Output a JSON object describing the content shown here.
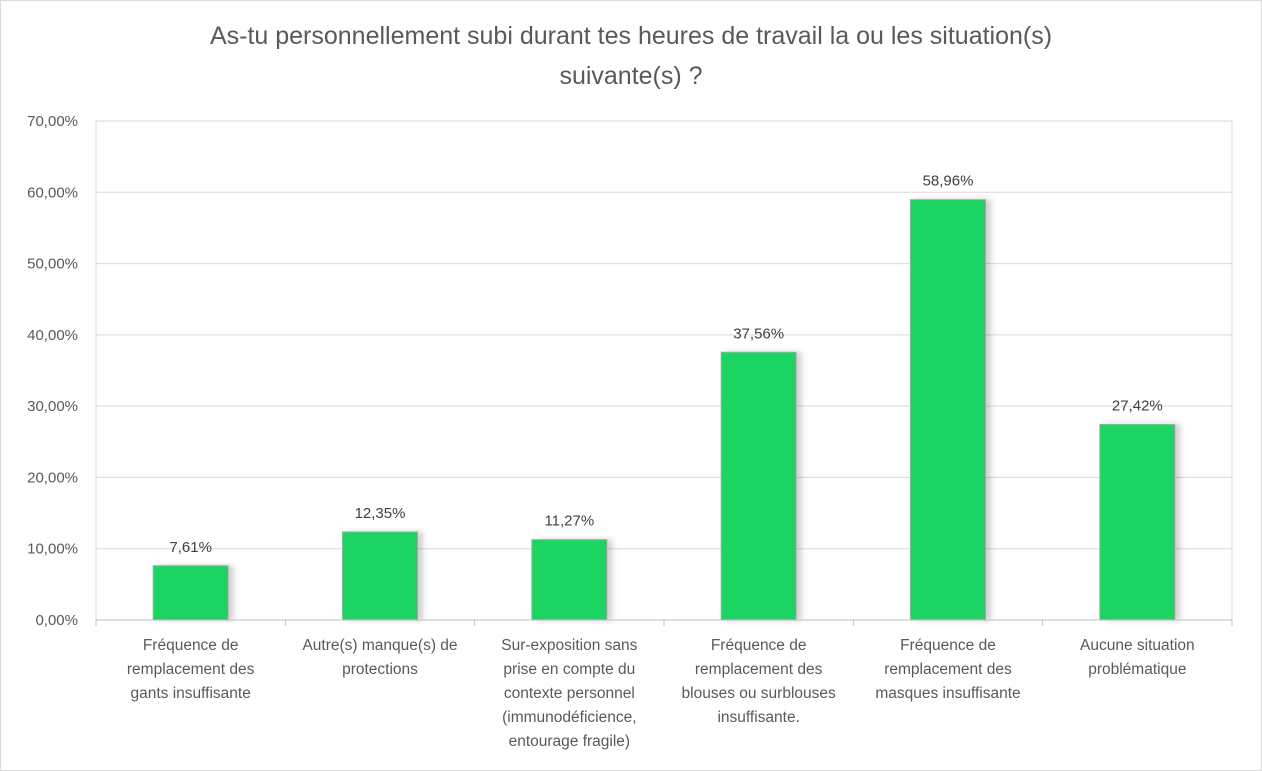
{
  "chart_data": {
    "type": "bar",
    "title_lines": [
      "As-tu personnellement  subi durant tes heures de travail la ou les situation(s)",
      "suivante(s) ?"
    ],
    "xlabel": "",
    "ylabel": "",
    "ylim": [
      0,
      70
    ],
    "yticks": [
      0,
      10,
      20,
      30,
      40,
      50,
      60,
      70
    ],
    "ytick_labels": [
      "0,00%",
      "10,00%",
      "20,00%",
      "30,00%",
      "40,00%",
      "50,00%",
      "60,00%",
      "70,00%"
    ],
    "grid": true,
    "legend": "none",
    "bar_color": "#1DD462",
    "bar_border_color": "#A6A6A6",
    "categories": [
      "Fréquence de\nremplacement des\ngants insuffisante",
      "Autre(s) manque(s) de\nprotections",
      "Sur-exposition sans\nprise en compte du\ncontexte personnel\n(immunodéficience,\nentourage fragile)",
      "Fréquence de\nremplacement des\nblouses ou surblouses\ninsuffisante.",
      "Fréquence de\nremplacement des\nmasques insuffisante",
      "Aucune situation\nproblématique"
    ],
    "values": [
      7.61,
      12.35,
      11.27,
      37.56,
      58.96,
      27.42
    ],
    "data_labels": [
      "7,61%",
      "12,35%",
      "11,27%",
      "37,56%",
      "58,96%",
      "27,42%"
    ]
  }
}
